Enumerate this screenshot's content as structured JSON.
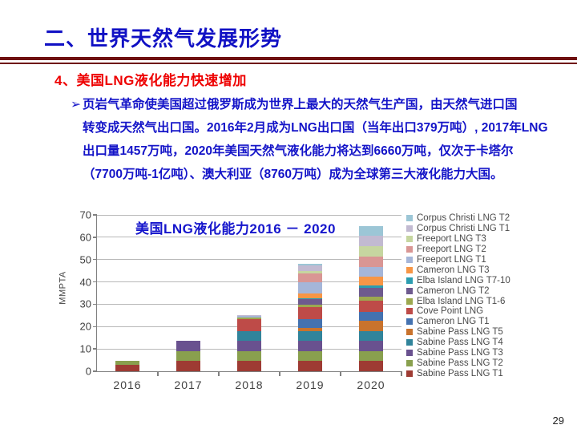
{
  "slide": {
    "title": "二、世界天然气发展形势",
    "heading": "4、美国LNG液化能力快速增加",
    "bullet_glyph": "➢",
    "body_lines": [
      "页岩气革命使美国超过俄罗斯成为世界上最大的天然气生产国，由天然气进口国",
      "转变成天然气出口国。2016年2月成为LNG出口国（当年出口379万吨）, 2017年LNG",
      "出口量1457万吨，2020年美国天然气液化能力将达到6660万吨，仅次于卡塔尔",
      "（7700万吨-1亿吨）、澳大利亚（8760万吨）成为全球第三大液化能力大国。"
    ],
    "page_number": "29"
  },
  "colors": {
    "title_blue": "#1111c4",
    "body_blue": "#1414c8",
    "heading_red": "#ee0000",
    "divider_maroon": "#6e1010",
    "chart_title_blue": "#1515cc"
  },
  "chart_data": {
    "type": "bar",
    "stacked": true,
    "title": "美国LNG液化能力2016 － 2020",
    "ylabel": "MMPTA",
    "xlabel": "",
    "ylim": [
      0,
      70
    ],
    "yticks": [
      0,
      10,
      20,
      30,
      40,
      50,
      60,
      70
    ],
    "grid": true,
    "legend_position": "right",
    "categories": [
      "2016",
      "2017",
      "2018",
      "2019",
      "2020"
    ],
    "totals_approx": [
      4.5,
      13.5,
      25,
      49,
      66
    ],
    "series": [
      {
        "name": "Sabine Pass LNG T1",
        "color": "#9e3b33",
        "values": [
          2.7,
          4.5,
          4.5,
          4.5,
          4.5
        ]
      },
      {
        "name": "Sabine Pass LNG T2",
        "color": "#89a04e",
        "values": [
          1.8,
          4.5,
          4.5,
          4.5,
          4.5
        ]
      },
      {
        "name": "Sabine Pass LNG T3",
        "color": "#69518f",
        "values": [
          0,
          4.5,
          4.5,
          4.5,
          4.5
        ]
      },
      {
        "name": "Sabine Pass LNG T4",
        "color": "#31849b",
        "values": [
          0,
          0,
          4.5,
          4.5,
          4.5
        ]
      },
      {
        "name": "Sabine Pass LNG T5",
        "color": "#c9732d",
        "values": [
          0,
          0,
          0,
          1.5,
          4.5
        ]
      },
      {
        "name": "Cameron LNG T1",
        "color": "#4472b0",
        "values": [
          0,
          0,
          0,
          4.0,
          4.0
        ]
      },
      {
        "name": "Cove Point LNG",
        "color": "#be4b48",
        "values": [
          0,
          0,
          5.25,
          5.25,
          5.25
        ]
      },
      {
        "name": "Elba Island LNG T1-6",
        "color": "#9ca84f",
        "values": [
          0,
          0,
          0.75,
          1.0,
          1.5
        ]
      },
      {
        "name": "Cameron LNG T2",
        "color": "#6e5a8e",
        "values": [
          0,
          0,
          0,
          2.5,
          4.0
        ]
      },
      {
        "name": "Elba Island LNG T7-10",
        "color": "#2c9db0",
        "values": [
          0,
          0,
          0,
          0.5,
          1.0
        ]
      },
      {
        "name": "Cameron LNG T3",
        "color": "#f79646",
        "values": [
          0,
          0,
          0,
          2.0,
          4.0
        ]
      },
      {
        "name": "Freeport LNG T1",
        "color": "#a5b6d9",
        "values": [
          0,
          0,
          1.0,
          5.0,
          4.6
        ]
      },
      {
        "name": "Freeport LNG T2",
        "color": "#d99694",
        "values": [
          0,
          0,
          0,
          4.0,
          4.6
        ]
      },
      {
        "name": "Freeport LNG T3",
        "color": "#c6d6a0",
        "values": [
          0,
          0,
          0,
          1.0,
          4.6
        ]
      },
      {
        "name": "Corpus Christi LNG T1",
        "color": "#c2bad1",
        "values": [
          0,
          0,
          0.3,
          2.5,
          4.5
        ]
      },
      {
        "name": "Corpus Christi LNG T2",
        "color": "#9cc6d6",
        "values": [
          0,
          0,
          0,
          0.75,
          4.5
        ]
      }
    ]
  }
}
